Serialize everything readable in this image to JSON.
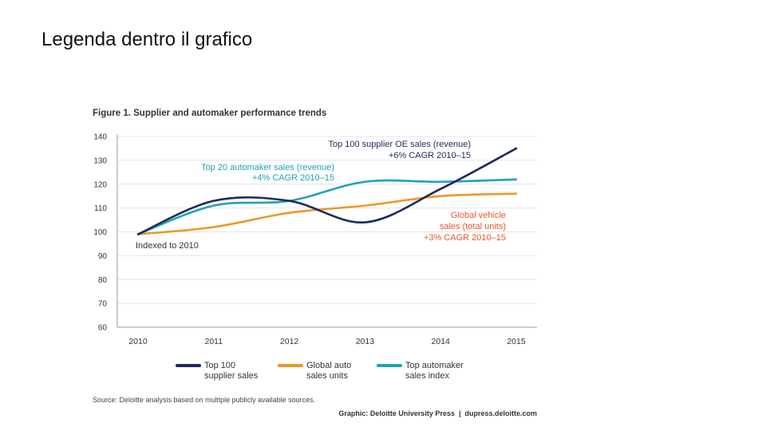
{
  "slide": {
    "title": "Legenda dentro il grafico"
  },
  "chart_data": {
    "type": "line",
    "title": "Figure 1. Supplier and automaker performance trends",
    "x": [
      2010,
      2011,
      2012,
      2013,
      2014,
      2015
    ],
    "x_tick_labels": [
      "2010",
      "2011",
      "2012",
      "2013",
      "2014",
      "2015"
    ],
    "ylim": [
      60,
      140
    ],
    "y_ticks": [
      60,
      70,
      80,
      90,
      100,
      110,
      120,
      130,
      140
    ],
    "y_tick_labels": [
      "60",
      "70",
      "80",
      "90",
      "100",
      "110",
      "120",
      "130",
      "140"
    ],
    "grid": true,
    "series": [
      {
        "name": "Top 100 supplier sales",
        "legend_line1": "Top 100",
        "legend_line2": "supplier sales",
        "color": "#1f2a5c",
        "values": [
          99,
          113,
          113,
          104,
          118,
          135
        ]
      },
      {
        "name": "Global auto sales units",
        "legend_line1": "Global auto",
        "legend_line2": "sales units",
        "color": "#f0962a",
        "values": [
          99,
          102,
          108,
          111,
          115,
          116
        ]
      },
      {
        "name": "Top automaker sales index",
        "legend_line1": "Top automaker",
        "legend_line2": "sales index",
        "color": "#1fa3b4",
        "values": [
          99,
          111,
          113,
          121,
          121,
          122
        ]
      }
    ],
    "annotations": [
      {
        "id": "supplier",
        "line1": "Top 100 supplier OE sales (revenue)",
        "line2": "+6% CAGR 2010–15",
        "color": "#1f2a5c"
      },
      {
        "id": "automaker",
        "line1": "Top 20 automaker sales (revenue)",
        "line2": "+4% CAGR 2010–15",
        "color": "#1fa3b4"
      },
      {
        "id": "vehicle",
        "line1": "Global vehicle",
        "line2": "sales (total units)",
        "line3": "+3% CAGR 2010–15",
        "color": "#e8572a"
      },
      {
        "id": "index",
        "line1": "Indexed to 2010",
        "color": "#333333"
      }
    ],
    "source": "Source: Deloitte analysis based on multiple publicly available sources.",
    "credit": "Graphic: Deloitte University Press  |  dupress.deloitte.com"
  }
}
